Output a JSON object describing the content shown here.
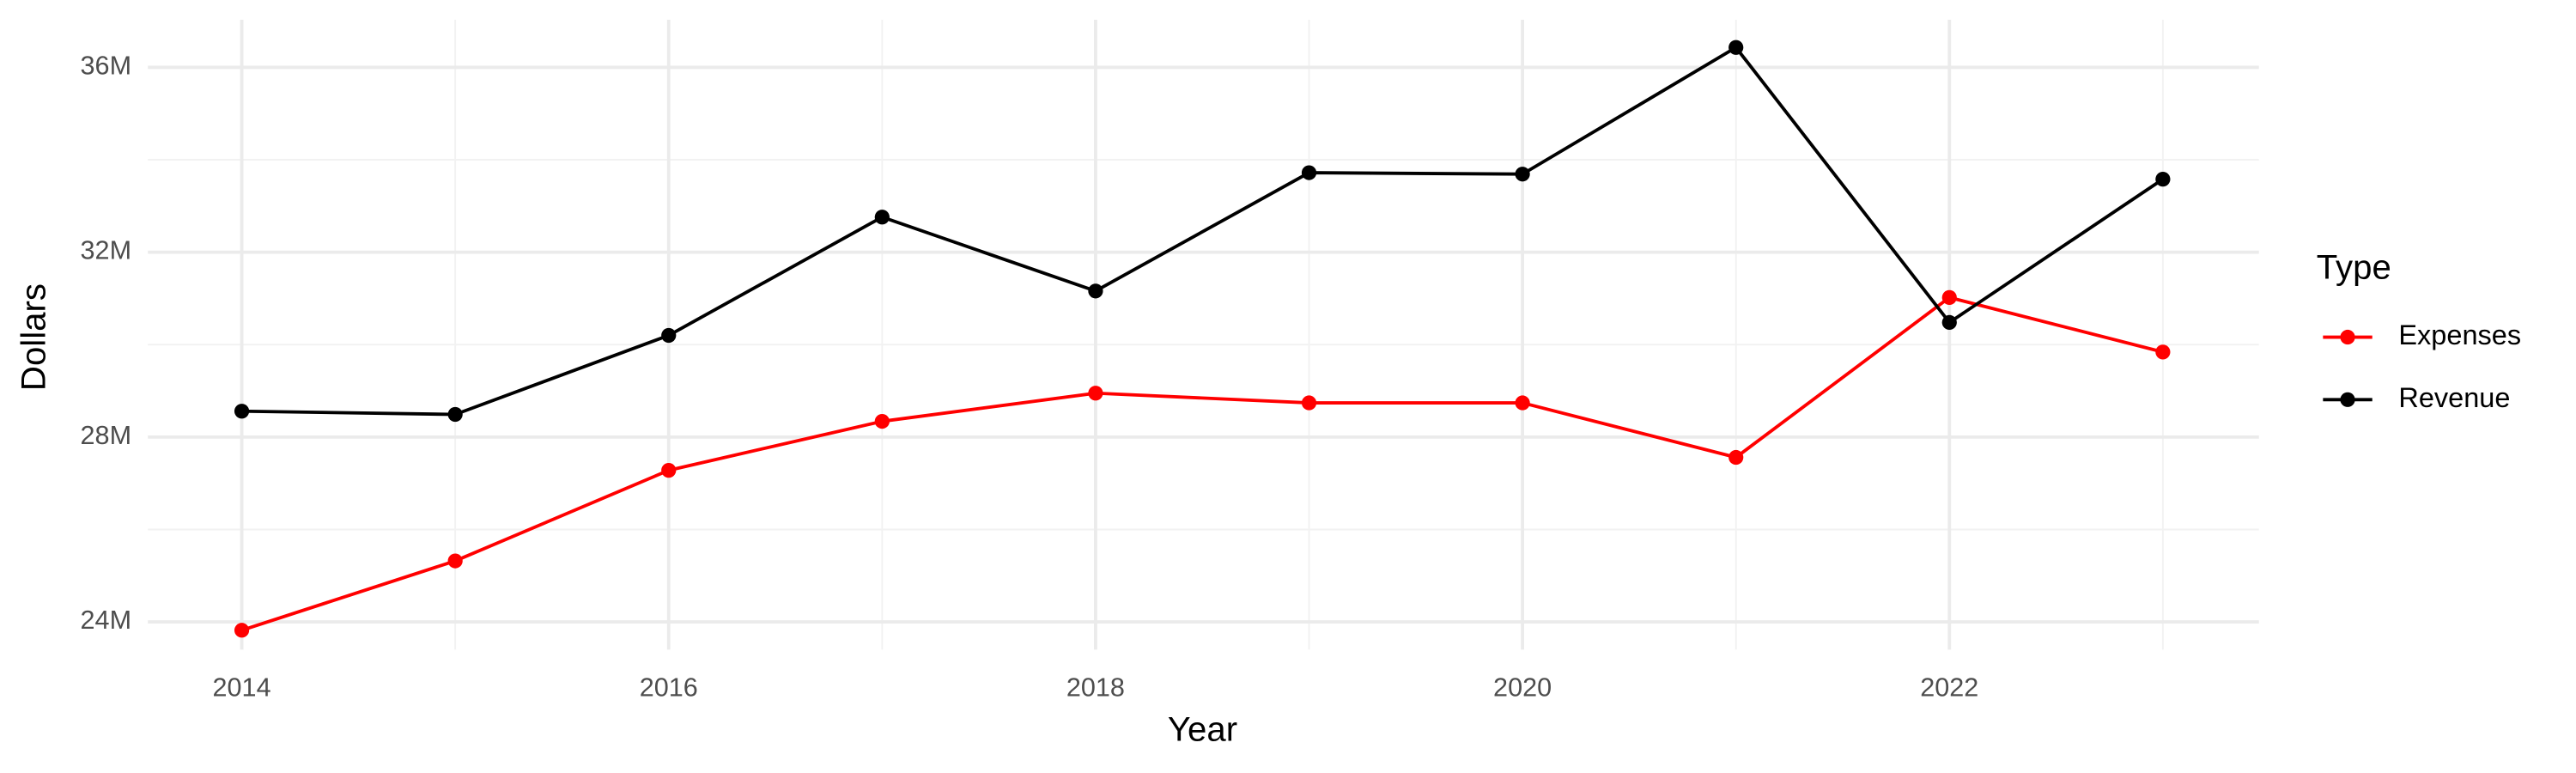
{
  "chart_data": {
    "type": "line",
    "x_label": "Year",
    "y_label": "Dollars",
    "legend_title": "Type",
    "x": [
      2014,
      2015,
      2016,
      2017,
      2018,
      2019,
      2020,
      2021,
      2022,
      2023
    ],
    "series": [
      {
        "name": "Expenses",
        "color": "#ff0000",
        "values": [
          23820000,
          25320000,
          27280000,
          28340000,
          28950000,
          28740000,
          28740000,
          27560000,
          31020000,
          29840000
        ]
      },
      {
        "name": "Revenue",
        "color": "#000000",
        "values": [
          28560000,
          28490000,
          30200000,
          32760000,
          31160000,
          33720000,
          33690000,
          36430000,
          30480000,
          33580000
        ]
      }
    ],
    "xlim": [
      2013.56,
      2023.45
    ],
    "xticks": [
      2014,
      2016,
      2018,
      2020,
      2022
    ],
    "minor_xticks": [
      2015,
      2017,
      2019,
      2021,
      2023
    ],
    "ylim": [
      23400000,
      37030000
    ],
    "yticks": [
      {
        "value": 24000000,
        "label": "24M"
      },
      {
        "value": 28000000,
        "label": "28M"
      },
      {
        "value": 32000000,
        "label": "32M"
      },
      {
        "value": 36000000,
        "label": "36M"
      }
    ],
    "minor_yticks": [
      26000000,
      30000000,
      34000000
    ],
    "grid": true,
    "legend": "right"
  }
}
